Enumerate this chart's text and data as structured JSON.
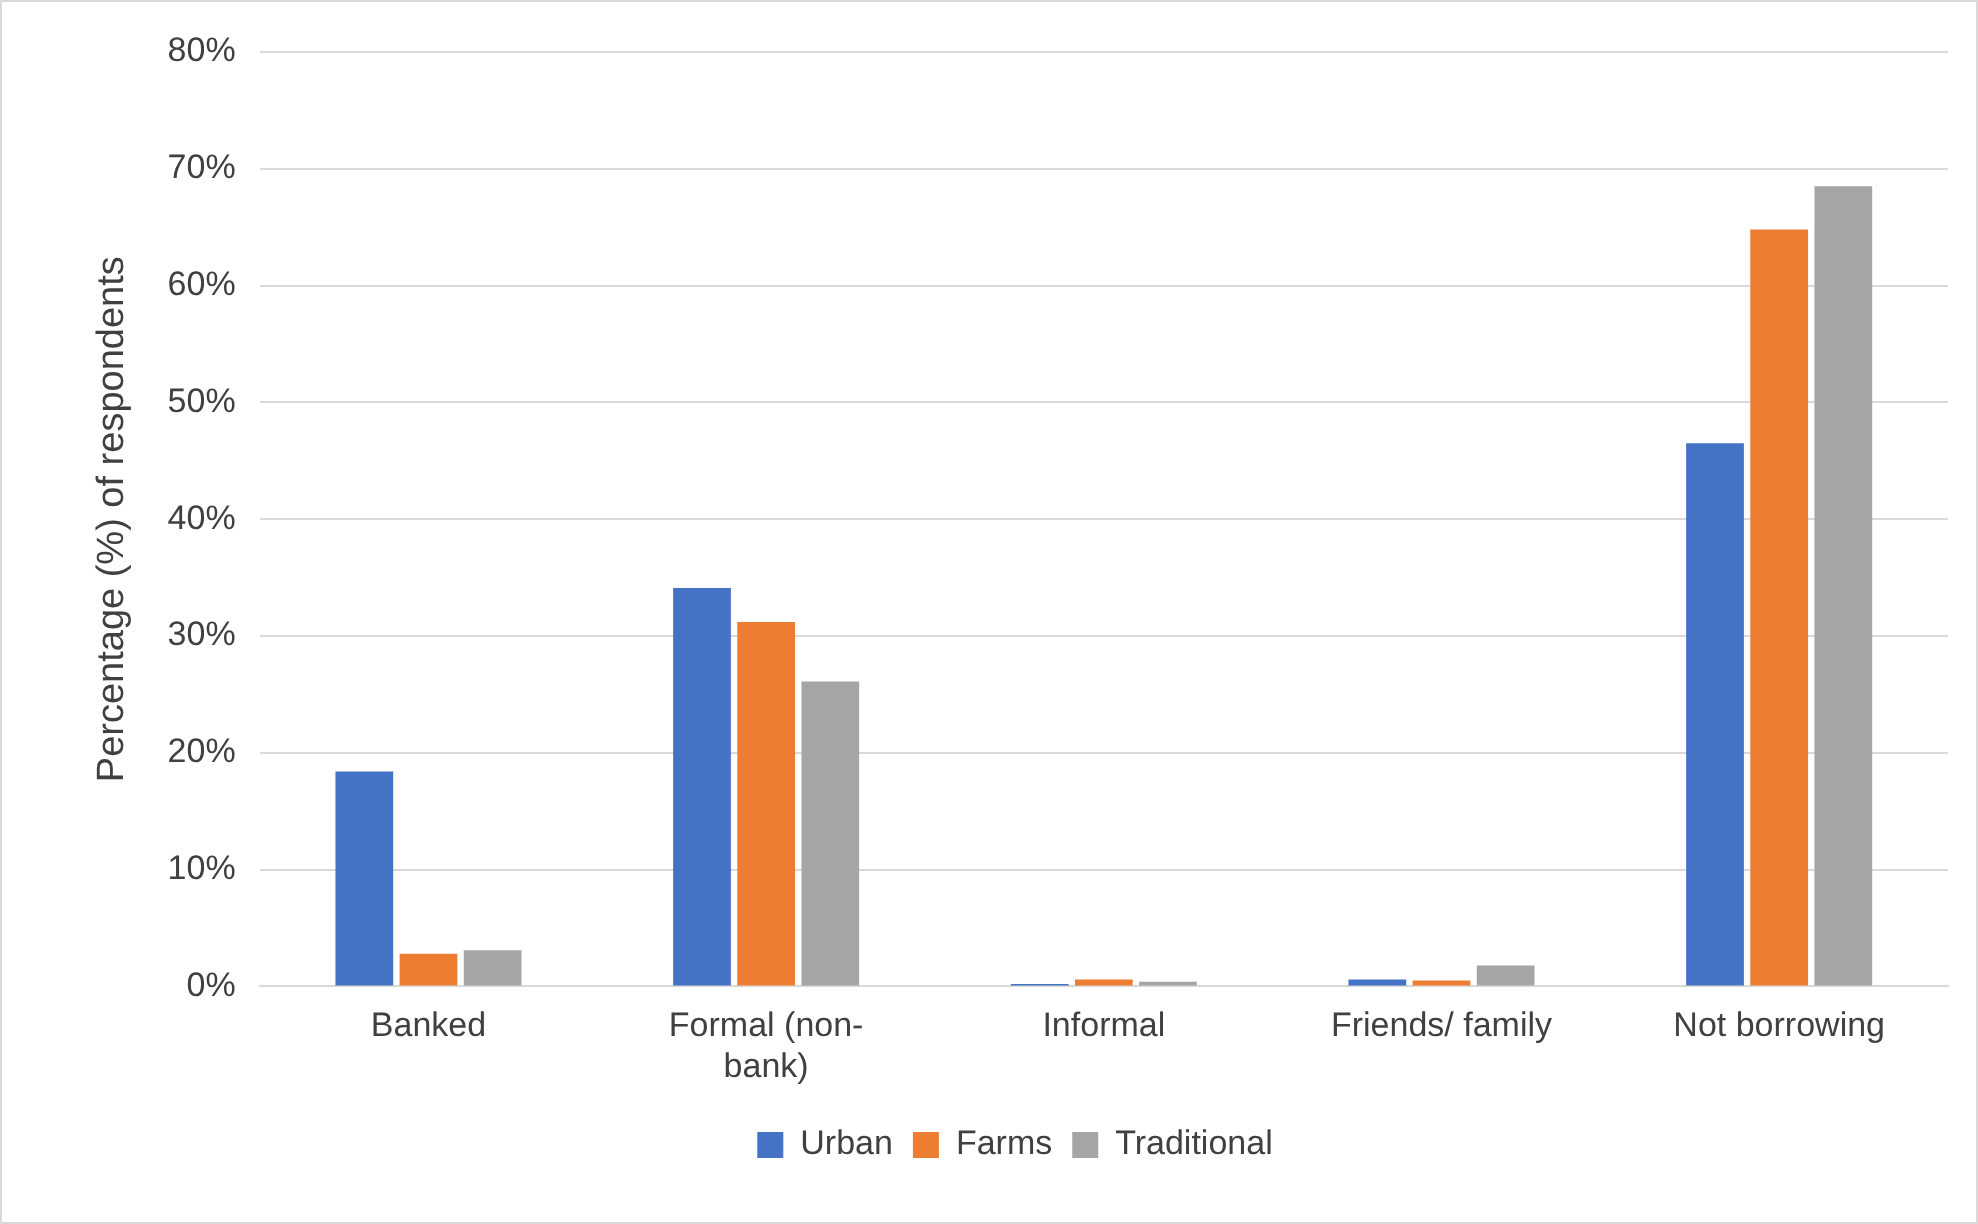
{
  "chart_data": {
    "type": "bar",
    "ylabel": "Percentage (%) of respondents",
    "categories": [
      "Banked",
      "Formal (non-bank)",
      "Informal",
      "Friends/ family",
      "Not borrowing"
    ],
    "series": [
      {
        "name": "Urban",
        "color": "#4472c4",
        "values": [
          18.4,
          34.1,
          0.2,
          0.6,
          46.5
        ]
      },
      {
        "name": "Farms",
        "color": "#ed7d31",
        "values": [
          2.8,
          31.2,
          0.6,
          0.5,
          64.8
        ]
      },
      {
        "name": "Traditional",
        "color": "#a5a5a5",
        "values": [
          3.1,
          26.1,
          0.4,
          1.8,
          68.5
        ]
      }
    ],
    "ylim": [
      0,
      80
    ],
    "yticks": [
      {
        "value": 0,
        "label": "0%"
      },
      {
        "value": 10,
        "label": "10%"
      },
      {
        "value": 20,
        "label": "20%"
      },
      {
        "value": 30,
        "label": "30%"
      },
      {
        "value": 40,
        "label": "40%"
      },
      {
        "value": 50,
        "label": "50%"
      },
      {
        "value": 60,
        "label": "60%"
      },
      {
        "value": 70,
        "label": "70%"
      },
      {
        "value": 80,
        "label": "80%"
      }
    ],
    "grid": "y",
    "legend": "bottom"
  }
}
